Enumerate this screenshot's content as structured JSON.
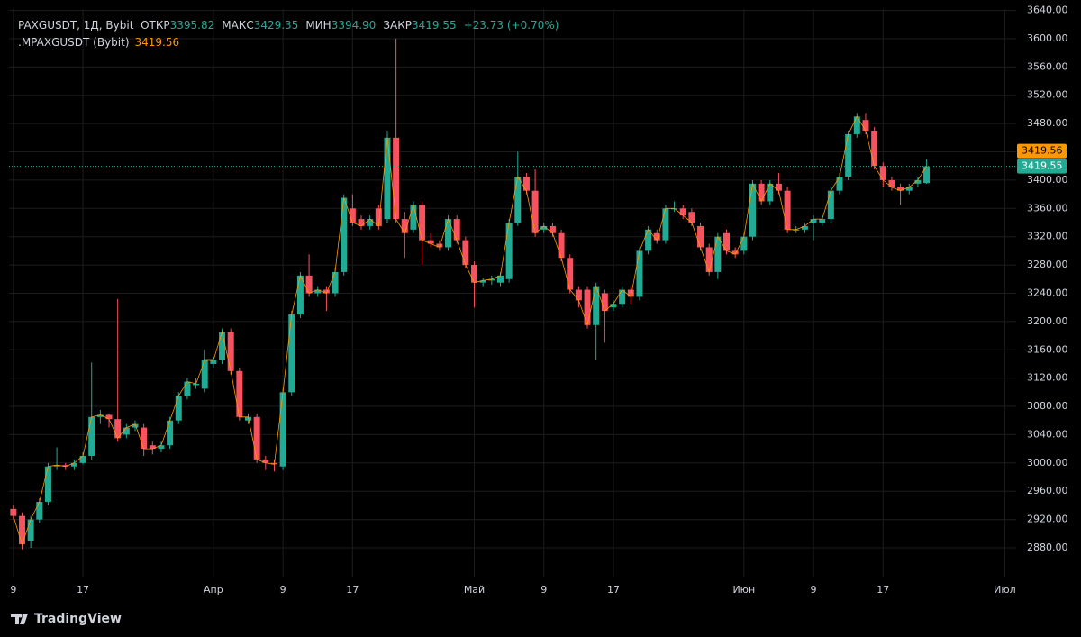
{
  "chart_data": {
    "type": "candlestick",
    "header": {
      "symbol": "PAXGUSDT, 1Д, Bybit",
      "fields": [
        {
          "label": "ОТКР",
          "value_label": "3395.82"
        },
        {
          "label": "МАКС",
          "value_label": "3429.35"
        },
        {
          "label": "МИН",
          "value_label": "3394.90"
        },
        {
          "label": "ЗАКР",
          "value_label": "3419.55"
        }
      ],
      "change": "+23.73 (+0.70%)"
    },
    "up_color": "#22ab94",
    "down_color": "#f7525f",
    "open": [
      2935,
      2925,
      2890,
      2920,
      2945,
      2995,
      2997,
      2995,
      3000,
      3010,
      3065,
      3068,
      3062,
      3040,
      3050,
      3050,
      3025,
      3020,
      3025,
      3060,
      3095,
      3110,
      3105,
      3140,
      3145,
      3185,
      3130,
      3060,
      3065,
      3005,
      3000,
      2995,
      3100,
      3210,
      3265,
      3240,
      3245,
      3240,
      3270,
      3360,
      3345,
      3335,
      3360,
      3345,
      3460,
      3345,
      3330,
      3365,
      3315,
      3310,
      3305,
      3345,
      3315,
      3280,
      3255,
      3258,
      3255,
      3260,
      3340,
      3405,
      3385,
      3330,
      3335,
      3325,
      3290,
      3245,
      3245,
      3195,
      3240,
      3220,
      3225,
      3245,
      3235,
      3300,
      3325,
      3315,
      3360,
      3360,
      3355,
      3335,
      3305,
      3270,
      3325,
      3300,
      3300,
      3320,
      3395,
      3370,
      3395,
      3385,
      3330,
      3330,
      3340,
      3340,
      3345,
      3385,
      3405,
      3465,
      3485,
      3470,
      3420,
      3400,
      3390,
      3385,
      3395,
      3395.82
    ],
    "high": [
      2940,
      2930,
      2925,
      2950,
      3000,
      3022,
      3000,
      3005,
      3015,
      3142,
      3075,
      3070,
      3232,
      3055,
      3060,
      3055,
      3030,
      3030,
      3065,
      3100,
      3120,
      3120,
      3160,
      3150,
      3190,
      3190,
      3135,
      3070,
      3070,
      3010,
      3005,
      3105,
      3215,
      3270,
      3295,
      3250,
      3250,
      3275,
      3380,
      3380,
      3350,
      3350,
      3365,
      3470,
      3600,
      3355,
      3370,
      3370,
      3325,
      3315,
      3350,
      3350,
      3320,
      3285,
      3262,
      3265,
      3270,
      3345,
      3440,
      3410,
      3415,
      3340,
      3340,
      3330,
      3295,
      3250,
      3250,
      3255,
      3245,
      3230,
      3250,
      3250,
      3305,
      3335,
      3330,
      3365,
      3370,
      3365,
      3360,
      3340,
      3310,
      3325,
      3330,
      3305,
      3325,
      3400,
      3400,
      3400,
      3410,
      3390,
      3335,
      3340,
      3350,
      3350,
      3390,
      3410,
      3470,
      3495,
      3495,
      3475,
      3425,
      3405,
      3395,
      3395,
      3405,
      3429.35
    ],
    "low": [
      2920,
      2878,
      2880,
      2915,
      2940,
      2990,
      2990,
      2990,
      2998,
      3005,
      3055,
      3050,
      3030,
      3035,
      3045,
      3010,
      3012,
      3015,
      3020,
      3055,
      3090,
      3105,
      3100,
      3135,
      3140,
      3125,
      3060,
      3055,
      3000,
      2990,
      2988,
      2990,
      3095,
      3205,
      3235,
      3235,
      3215,
      3235,
      3265,
      3335,
      3330,
      3330,
      3330,
      3340,
      3340,
      3290,
      3325,
      3280,
      3305,
      3300,
      3300,
      3310,
      3275,
      3220,
      3250,
      3252,
      3250,
      3255,
      3335,
      3380,
      3320,
      3325,
      3320,
      3285,
      3240,
      3220,
      3190,
      3145,
      3170,
      3215,
      3220,
      3225,
      3230,
      3295,
      3310,
      3310,
      3355,
      3345,
      3335,
      3300,
      3265,
      3260,
      3295,
      3290,
      3295,
      3315,
      3365,
      3365,
      3380,
      3325,
      3325,
      3325,
      3315,
      3335,
      3340,
      3380,
      3400,
      3460,
      3465,
      3415,
      3390,
      3385,
      3365,
      3380,
      3390,
      3394.9
    ],
    "close": [
      2925,
      2885,
      2920,
      2945,
      2995,
      2997,
      2995,
      3000,
      3010,
      3065,
      3068,
      3062,
      3035,
      3050,
      3055,
      3020,
      3020,
      3025,
      3060,
      3095,
      3115,
      3112,
      3145,
      3145,
      3185,
      3130,
      3065,
      3065,
      3005,
      3000,
      2998,
      3100,
      3210,
      3265,
      3240,
      3245,
      3240,
      3270,
      3375,
      3340,
      3335,
      3345,
      3335,
      3460,
      3345,
      3325,
      3365,
      3315,
      3310,
      3305,
      3345,
      3315,
      3280,
      3255,
      3258,
      3260,
      3265,
      3340,
      3405,
      3385,
      3325,
      3335,
      3325,
      3290,
      3245,
      3230,
      3195,
      3250,
      3215,
      3225,
      3245,
      3235,
      3300,
      3330,
      3315,
      3360,
      3360,
      3350,
      3340,
      3305,
      3270,
      3320,
      3300,
      3295,
      3320,
      3395,
      3370,
      3395,
      3385,
      3330,
      3330,
      3335,
      3345,
      3345,
      3385,
      3405,
      3465,
      3490,
      3470,
      3420,
      3400,
      3390,
      3385,
      3390,
      3400,
      3419.55
    ],
    "index_series": {
      "name": ".MPAXGUSDT (Bybit)",
      "color": "#ff9800",
      "values": [
        2925,
        2885,
        2920,
        2945,
        2995,
        2997,
        2995,
        3000,
        3010,
        3065,
        3068,
        3062,
        3035,
        3050,
        3055,
        3020,
        3020,
        3025,
        3060,
        3095,
        3115,
        3112,
        3145,
        3145,
        3185,
        3130,
        3065,
        3065,
        3005,
        3000,
        2998,
        3100,
        3210,
        3265,
        3240,
        3245,
        3240,
        3270,
        3375,
        3340,
        3335,
        3345,
        3335,
        3460,
        3345,
        3325,
        3365,
        3315,
        3310,
        3305,
        3345,
        3315,
        3280,
        3255,
        3258,
        3260,
        3265,
        3340,
        3405,
        3385,
        3325,
        3335,
        3325,
        3290,
        3245,
        3230,
        3195,
        3250,
        3215,
        3225,
        3245,
        3235,
        3300,
        3330,
        3315,
        3360,
        3360,
        3350,
        3340,
        3305,
        3270,
        3320,
        3300,
        3295,
        3320,
        3395,
        3370,
        3395,
        3385,
        3330,
        3330,
        3335,
        3345,
        3345,
        3385,
        3405,
        3465,
        3490,
        3470,
        3420,
        3400,
        3390,
        3385,
        3390,
        3400,
        3419.56
      ]
    },
    "xlim": [
      -0.5,
      115.3
    ],
    "xticks": [
      {
        "value": 0,
        "label": "9"
      },
      {
        "value": 8,
        "label": "17"
      },
      {
        "value": 23,
        "label": "Апр"
      },
      {
        "value": 31,
        "label": "9"
      },
      {
        "value": 39,
        "label": "17"
      },
      {
        "value": 53,
        "label": "Май"
      },
      {
        "value": 61,
        "label": "9"
      },
      {
        "value": 69,
        "label": "17"
      },
      {
        "value": 84,
        "label": "Июн"
      },
      {
        "value": 92,
        "label": "9"
      },
      {
        "value": 100,
        "label": "17"
      },
      {
        "value": 114,
        "label": "Июл"
      }
    ],
    "ylim": [
      2839.2,
      3642
    ],
    "yticks": [
      {
        "value": 2880,
        "label": "2880.00"
      },
      {
        "value": 2920,
        "label": "2920.00"
      },
      {
        "value": 2960,
        "label": "2960.00"
      },
      {
        "value": 3000,
        "label": "3000.00"
      },
      {
        "value": 3040,
        "label": "3040.00"
      },
      {
        "value": 3080,
        "label": "3080.00"
      },
      {
        "value": 3120,
        "label": "3120.00"
      },
      {
        "value": 3160,
        "label": "3160.00"
      },
      {
        "value": 3200,
        "label": "3200.00"
      },
      {
        "value": 3240,
        "label": "3240.00"
      },
      {
        "value": 3280,
        "label": "3280.00"
      },
      {
        "value": 3320,
        "label": "3320.00"
      },
      {
        "value": 3360,
        "label": "3360.00"
      },
      {
        "value": 3400,
        "label": "3400.00"
      },
      {
        "value": 3440,
        "label": "3440.00"
      },
      {
        "value": 3480,
        "label": "3480.00"
      },
      {
        "value": 3520,
        "label": "3520.00"
      },
      {
        "value": 3560,
        "label": "3560.00"
      },
      {
        "value": 3600,
        "label": "3600.00"
      },
      {
        "value": 3640,
        "label": "3640.00"
      }
    ],
    "grid": true
  },
  "footer": {
    "brand": "TradingView"
  }
}
